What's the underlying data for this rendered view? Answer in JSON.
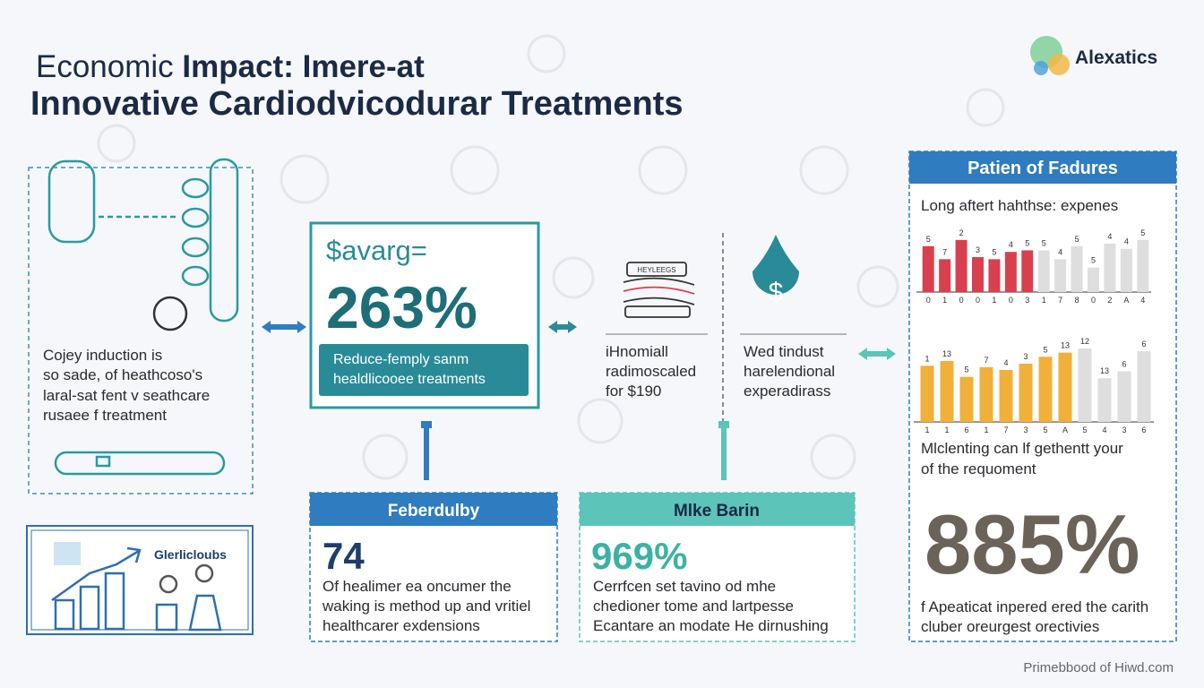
{
  "header": {
    "title_light": "Economic",
    "title_bold": "Impact: Imere-at",
    "title_line2": "Innovative Cardiodvicodurar Treatments",
    "logo": "Alexatics"
  },
  "left_panel": {
    "lines": [
      "Cojey induction is",
      "so sade, of heathcoso's",
      "laral-sat fent v seathcare",
      "rusaee f treatment"
    ]
  },
  "badge": {
    "label": "Glerlicloubs"
  },
  "savings_card": {
    "label": "$avarg=",
    "value": "263%",
    "note": [
      "Reduce-femply sanm",
      "healdlicooee treatments"
    ]
  },
  "middle": {
    "icon_label": "HEYLEEGS",
    "left_lines": [
      "iHnomiall",
      "radimoscaled",
      "for $190"
    ],
    "right_lines": [
      "Wed tindust",
      "harelendional",
      "experadirass"
    ]
  },
  "cards": [
    {
      "title": "Feberdulby",
      "value": "74",
      "lines": [
        "Of healimer ea oncumer the",
        "waking is method up and vritiel",
        "healthcarer exdensions"
      ]
    },
    {
      "title": "Mlke Barin",
      "value": "969%",
      "lines": [
        "Cerrfcen set tavino od mhe",
        "chedioner tome and lartpesse",
        "Ecantare an modate He dirnushing"
      ]
    }
  ],
  "right_panel": {
    "title": "Patien of Fadures",
    "subtitle": "Long aftert hahthse: expenes",
    "chart1": {
      "values": [
        8.8,
        6.3,
        10,
        6.7,
        6.3,
        7.7,
        8,
        8,
        6.3,
        8.8,
        4.7,
        9.3,
        8.3,
        10
      ],
      "color": "#d9404f",
      "rest_color": "#dedede",
      "highlight_count": 7,
      "ylim": [
        0,
        11
      ],
      "top_labels": [
        "5",
        "7",
        "2",
        "3",
        "5",
        "4",
        "5",
        "5",
        "4",
        "5",
        "5",
        "4",
        "4",
        "5"
      ],
      "bottom_labels": [
        "0",
        "1",
        "0",
        "0",
        "1",
        "0",
        "3",
        "1",
        "7",
        "8",
        "0",
        "2",
        "A",
        "4"
      ]
    },
    "middle_lines": [
      "Mlclenting can lf gethentt your",
      "of the requoment"
    ],
    "chart2": {
      "values": [
        8.1,
        8.8,
        6.5,
        7.9,
        7.5,
        8.4,
        9.4,
        10,
        10.6,
        6.3,
        7.3,
        10.2
      ],
      "color": "#f0b03a",
      "rest_color": "#dedede",
      "highlight_count": 8,
      "ylim": [
        0,
        11.5
      ],
      "top_labels": [
        "1",
        "13",
        "5",
        "7",
        "4",
        "3",
        "5",
        "13",
        "12",
        "13",
        "6",
        "6"
      ],
      "bottom_labels": [
        "1",
        "1",
        "6",
        "1",
        "7",
        "3",
        "5",
        "A",
        "5",
        "4",
        "3",
        "6"
      ]
    },
    "big_value": "885%",
    "footer_lines": [
      "f Apeaticat inpered ered the carith",
      "cluber oreurgest orectivies"
    ]
  },
  "footer": "Primebbood of Hiwd.com"
}
